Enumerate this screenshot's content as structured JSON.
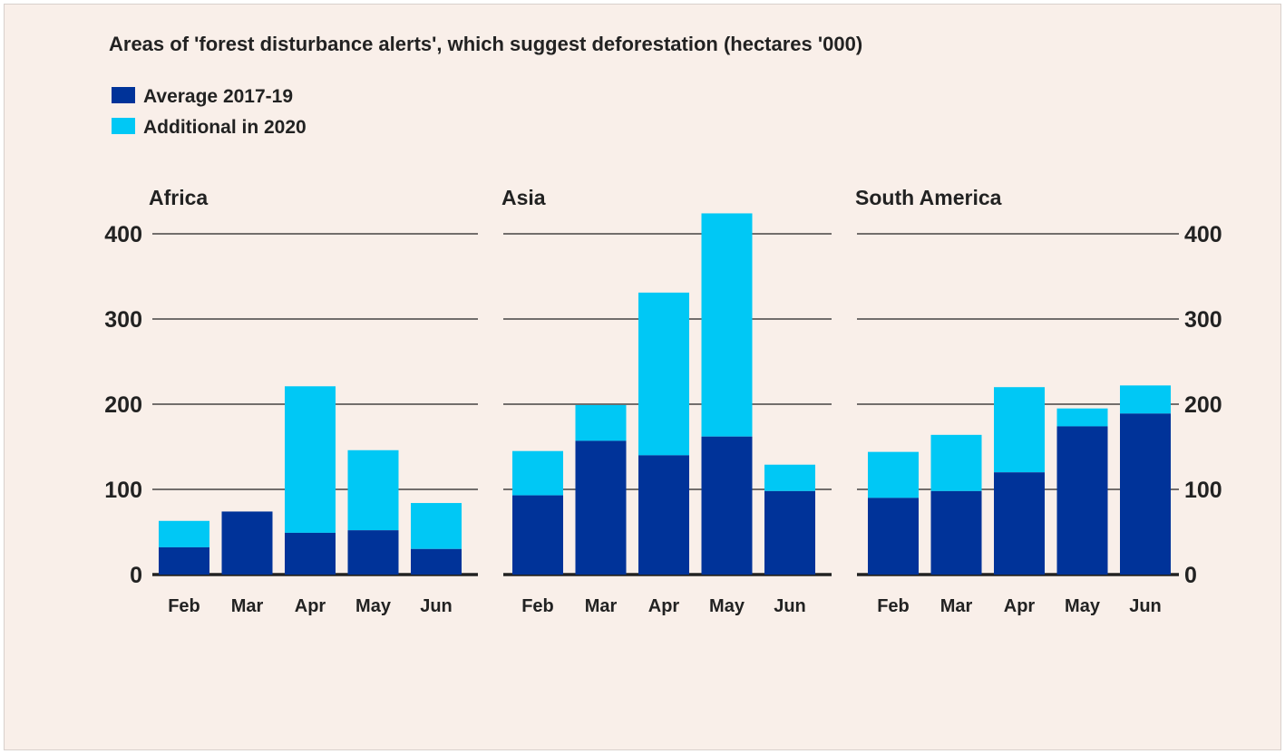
{
  "chart_data": {
    "type": "bar",
    "stacked": true,
    "title": "Areas of 'forest disturbance alerts', which suggest deforestation (hectares '000)",
    "legend": [
      {
        "name": "Average 2017-19",
        "color": "#003399"
      },
      {
        "name": "Additional in 2020",
        "color": "#00c8f5"
      }
    ],
    "ylim": [
      0,
      420
    ],
    "yticks": [
      "0",
      "100",
      "200",
      "300",
      "400"
    ],
    "grid": true,
    "categories": [
      "Feb",
      "Mar",
      "Apr",
      "May",
      "Jun"
    ],
    "panels": [
      {
        "title": "Africa",
        "series": [
          {
            "name": "Average 2017-19",
            "values": [
              32,
              74,
              49,
              52,
              30
            ]
          },
          {
            "name": "Additional in 2020",
            "values": [
              31,
              0,
              172,
              94,
              54
            ]
          }
        ]
      },
      {
        "title": "Asia",
        "series": [
          {
            "name": "Average 2017-19",
            "values": [
              93,
              157,
              140,
              162,
              98
            ]
          },
          {
            "name": "Additional in 2020",
            "values": [
              52,
              42,
              191,
              262,
              31
            ]
          }
        ]
      },
      {
        "title": "South America",
        "series": [
          {
            "name": "Average 2017-19",
            "values": [
              90,
              98,
              120,
              174,
              189
            ]
          },
          {
            "name": "Additional in 2020",
            "values": [
              54,
              66,
              100,
              21,
              33
            ]
          }
        ]
      }
    ]
  }
}
